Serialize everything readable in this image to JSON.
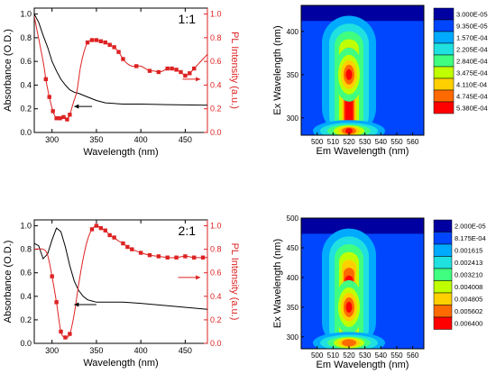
{
  "colors": {
    "absorbance": "#000000",
    "pl": "#dd2222",
    "pl_axis": "#dd2222",
    "contour_levels": [
      "#0000a0",
      "#0046ff",
      "#00aaff",
      "#20e0e0",
      "#40ff80",
      "#c0ff00",
      "#ffd000",
      "#ff6a00",
      "#ff0000"
    ]
  },
  "chart_data": [
    {
      "type": "line",
      "panel": "top-left",
      "label": "1:1",
      "xlabel": "Wavelength (nm)",
      "ylabel_left": "Absorbance (O.D.)",
      "ylabel_right": "PL Intensity (a.u.)",
      "xlim": [
        280,
        475
      ],
      "ylim_left": [
        0,
        1.05
      ],
      "ylim_right": [
        0,
        1.05
      ],
      "x_ticks": [
        300,
        350,
        400,
        450
      ],
      "y_ticks_left": [
        0.0,
        0.2,
        0.4,
        0.6,
        0.8,
        1.0
      ],
      "y_ticks_right": [
        0.0,
        0.2,
        0.4,
        0.6,
        0.8,
        1.0
      ],
      "absorbance": {
        "x": [
          280,
          285,
          290,
          295,
          300,
          305,
          310,
          315,
          320,
          325,
          330,
          340,
          350,
          360,
          380,
          400,
          430,
          475
        ],
        "y": [
          1.0,
          0.93,
          0.82,
          0.72,
          0.6,
          0.52,
          0.45,
          0.4,
          0.36,
          0.34,
          0.33,
          0.3,
          0.27,
          0.25,
          0.24,
          0.24,
          0.235,
          0.23
        ]
      },
      "pl": {
        "x": [
          280,
          290,
          293,
          297,
          301,
          305,
          309,
          313,
          317,
          320,
          324,
          328,
          332,
          336,
          340,
          345,
          350,
          355,
          360,
          365,
          370,
          375,
          380,
          385,
          390,
          395,
          400,
          405,
          410,
          415,
          420,
          425,
          430,
          435,
          440,
          445,
          450,
          455,
          460,
          465,
          470,
          475
        ],
        "y": [
          0.98,
          0.6,
          0.45,
          0.3,
          0.18,
          0.12,
          0.12,
          0.13,
          0.11,
          0.15,
          0.25,
          0.35,
          0.55,
          0.68,
          0.76,
          0.78,
          0.78,
          0.77,
          0.76,
          0.74,
          0.72,
          0.68,
          0.62,
          0.58,
          0.56,
          0.56,
          0.56,
          0.54,
          0.52,
          0.52,
          0.51,
          0.52,
          0.54,
          0.54,
          0.53,
          0.51,
          0.48,
          0.5,
          0.54,
          0.58,
          0.62,
          0.66
        ]
      },
      "pl_markers_x": [
        293,
        297,
        301,
        305,
        309,
        313,
        317,
        320,
        340,
        345,
        350,
        355,
        360,
        365,
        370,
        375,
        380,
        395,
        410,
        420,
        430,
        435,
        440,
        445,
        450,
        455,
        460
      ],
      "arrows": [
        {
          "direction": "left",
          "near": "absorbance",
          "x_from": 345,
          "x_to": 325,
          "y": 0.22
        },
        {
          "direction": "right",
          "near": "pl",
          "x_from": 447,
          "x_to": 467,
          "y": 0.45
        }
      ]
    },
    {
      "type": "heatmap",
      "panel": "top-right",
      "xlabel": "Em Wavelength (nm)",
      "ylabel": "Ex Wavelength (nm)",
      "xlim": [
        490,
        567
      ],
      "ylim": [
        280,
        430
      ],
      "x_ticks": [
        500,
        510,
        520,
        530,
        540,
        550,
        560
      ],
      "y_ticks": [
        300,
        350,
        400
      ],
      "legend": [
        "3.000E-05",
        "9.350E-05",
        "1.570E-04",
        "2.205E-04",
        "2.840E-04",
        "3.475E-04",
        "4.110E-04",
        "4.745E-04",
        "5.380E-04"
      ],
      "hotspots": [
        {
          "center_em": 520,
          "center_ex": 350,
          "level": 8
        },
        {
          "center_em": 520,
          "center_ex": 285,
          "level": 8
        }
      ]
    },
    {
      "type": "line",
      "panel": "bottom-left",
      "label": "2:1",
      "xlabel": "Wavelength (nm)",
      "ylabel_left": "Absorbance (O.D.)",
      "ylabel_right": "PL Intensity (a.u.)",
      "xlim": [
        280,
        475
      ],
      "ylim_left": [
        0,
        1.05
      ],
      "ylim_right": [
        0,
        1.05
      ],
      "x_ticks": [
        300,
        350,
        400,
        450
      ],
      "y_ticks_left": [
        0.0,
        0.2,
        0.4,
        0.6,
        0.8,
        1.0
      ],
      "y_ticks_right": [
        0.0,
        0.2,
        0.4,
        0.6,
        0.8,
        1.0
      ],
      "absorbance": {
        "x": [
          280,
          285,
          290,
          295,
          300,
          305,
          310,
          315,
          320,
          325,
          330,
          335,
          340,
          345,
          350,
          360,
          380,
          400,
          430,
          475
        ],
        "y": [
          0.85,
          0.83,
          0.72,
          0.76,
          0.88,
          0.98,
          0.95,
          0.82,
          0.66,
          0.53,
          0.45,
          0.4,
          0.37,
          0.36,
          0.35,
          0.35,
          0.35,
          0.34,
          0.32,
          0.29
        ]
      },
      "pl": {
        "x": [
          280,
          290,
          295,
          300,
          305,
          310,
          315,
          320,
          325,
          330,
          335,
          340,
          345,
          350,
          355,
          360,
          365,
          370,
          375,
          380,
          385,
          390,
          400,
          410,
          420,
          430,
          440,
          450,
          460,
          470,
          475
        ],
        "y": [
          0.8,
          0.8,
          0.75,
          0.57,
          0.35,
          0.1,
          0.05,
          0.08,
          0.25,
          0.5,
          0.72,
          0.88,
          0.97,
          1.0,
          0.98,
          0.96,
          0.92,
          0.9,
          0.87,
          0.85,
          0.82,
          0.8,
          0.77,
          0.75,
          0.74,
          0.73,
          0.73,
          0.74,
          0.73,
          0.73,
          0.73
        ]
      },
      "pl_markers_x": [
        300,
        305,
        310,
        315,
        320,
        345,
        350,
        355,
        360,
        365,
        370,
        380,
        385,
        390,
        400,
        410,
        420,
        430,
        440,
        450,
        460,
        470
      ],
      "arrows": [
        {
          "direction": "left",
          "near": "absorbance",
          "x_from": 350,
          "x_to": 325,
          "y": 0.33
        },
        {
          "direction": "right",
          "near": "pl",
          "x_from": 442,
          "x_to": 467,
          "y": 0.56
        }
      ]
    },
    {
      "type": "heatmap",
      "panel": "bottom-right",
      "xlabel": "Em Wavelength (nm)",
      "ylabel": "Ex Wavelength (nm)",
      "xlim": [
        490,
        567
      ],
      "ylim": [
        280,
        500
      ],
      "x_ticks": [
        500,
        510,
        520,
        530,
        540,
        550,
        560
      ],
      "y_ticks": [
        300,
        350,
        400,
        450,
        500
      ],
      "legend": [
        "2.000E-05",
        "8.175E-04",
        "0.001615",
        "0.002413",
        "0.003210",
        "0.004008",
        "0.004805",
        "0.005602",
        "0.006400"
      ],
      "hotspots": [
        {
          "center_em": 520,
          "center_ex": 350,
          "level": 8
        },
        {
          "center_em": 520,
          "center_ex": 290,
          "level": 7
        }
      ]
    }
  ]
}
